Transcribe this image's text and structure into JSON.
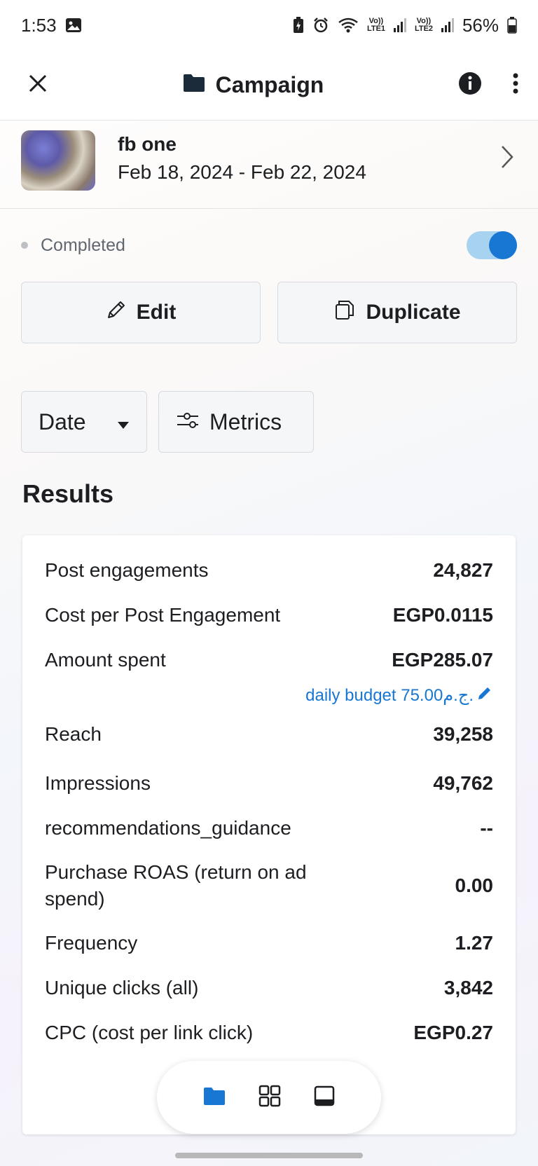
{
  "status_bar": {
    "time": "1:53",
    "battery": "56%",
    "sim1_label": "Vo)) LTE1",
    "sim2_label": "Vo)) LTE2"
  },
  "header": {
    "title": "Campaign",
    "icons": [
      "close-icon",
      "folder-icon",
      "info-icon",
      "more-icon"
    ]
  },
  "campaign": {
    "name": "fb one",
    "dates": "Feb 18, 2024 - Feb 22, 2024"
  },
  "status": {
    "label": "Completed",
    "toggle_on": true
  },
  "actions": {
    "edit_label": "Edit",
    "duplicate_label": "Duplicate"
  },
  "filters": {
    "date_label": "Date",
    "metrics_label": "Metrics"
  },
  "results": {
    "title": "Results",
    "rows": [
      {
        "label": "Post engagements",
        "value": "24,827"
      },
      {
        "label": "Cost per Post Engagement",
        "value": "EGP0.0115"
      },
      {
        "label": "Amount spent",
        "value": "EGP285.07"
      },
      {
        "label": "Reach",
        "value": "39,258"
      },
      {
        "label": "Impressions",
        "value": "49,762"
      },
      {
        "label": "recommendations_guidance",
        "value": "--"
      },
      {
        "label": "Purchase ROAS (return on ad spend)",
        "value": "0.00"
      },
      {
        "label": "Frequency",
        "value": "1.27"
      },
      {
        "label": "Unique clicks (all)",
        "value": "3,842"
      },
      {
        "label": "CPC (cost per link click)",
        "value": "EGP0.27"
      }
    ],
    "daily_budget": "daily budget 75.00ج.م."
  },
  "colors": {
    "accent": "#1877d2",
    "toggle_track": "#a7d3f1"
  },
  "bottom_nav": {
    "items": [
      "folder-icon",
      "grid-icon",
      "tablet-icon"
    ],
    "active": "folder-icon"
  }
}
